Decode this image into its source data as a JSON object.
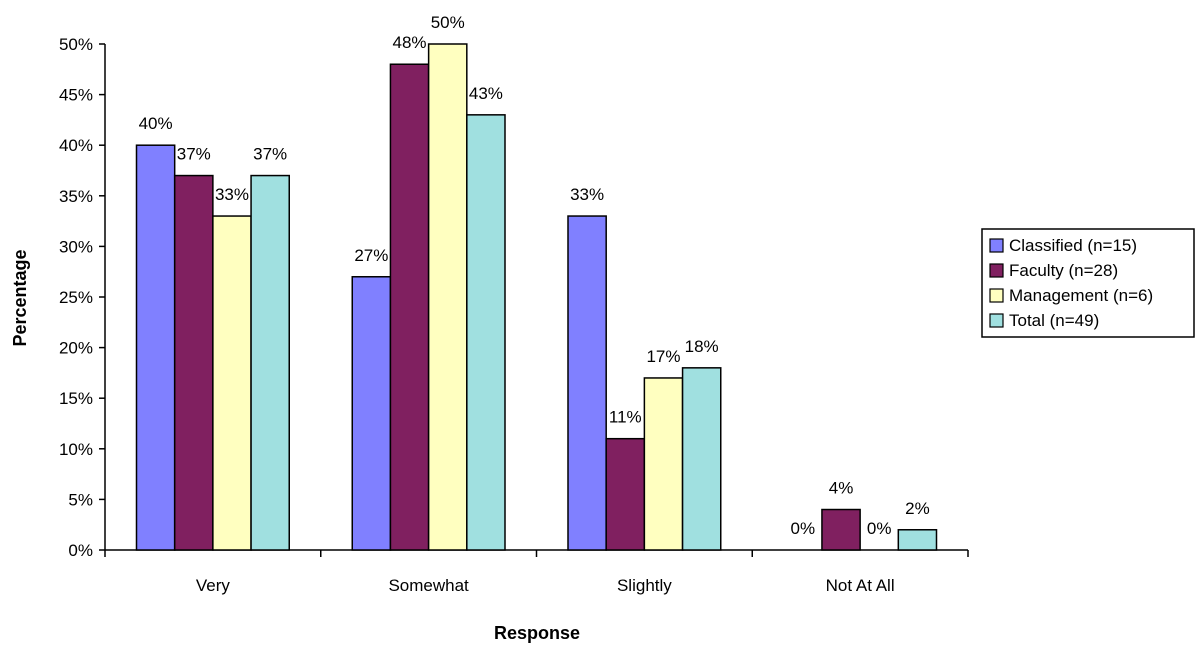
{
  "chart_data": {
    "type": "bar",
    "title": "",
    "xlabel": "Response",
    "ylabel": "Percentage",
    "ylim": [
      0,
      50
    ],
    "yticks": [
      0,
      5,
      10,
      15,
      20,
      25,
      30,
      35,
      40,
      45,
      50
    ],
    "ytick_labels": [
      "0%",
      "5%",
      "10%",
      "15%",
      "20%",
      "25%",
      "30%",
      "35%",
      "40%",
      "45%",
      "50%"
    ],
    "categories": [
      "Very",
      "Somewhat",
      "Slightly",
      "Not At All"
    ],
    "grid": false,
    "legend_position": "right",
    "series": [
      {
        "name": "Classified (n=15)",
        "color": "#8080FF",
        "values": [
          40,
          27,
          33,
          0
        ],
        "labels": [
          "40%",
          "27%",
          "33%",
          "0%"
        ]
      },
      {
        "name": "Faculty (n=28)",
        "color": "#802060",
        "values": [
          37,
          48,
          11,
          4
        ],
        "labels": [
          "37%",
          "48%",
          "11%",
          "4%"
        ]
      },
      {
        "name": "Management (n=6)",
        "color": "#FFFFC0",
        "values": [
          33,
          50,
          17,
          0
        ],
        "labels": [
          "33%",
          "50%",
          "17%",
          "0%"
        ]
      },
      {
        "name": "Total (n=49)",
        "color": "#A0E0E0",
        "values": [
          37,
          43,
          18,
          2
        ],
        "labels": [
          "37%",
          "43%",
          "18%",
          "2%"
        ]
      }
    ]
  }
}
